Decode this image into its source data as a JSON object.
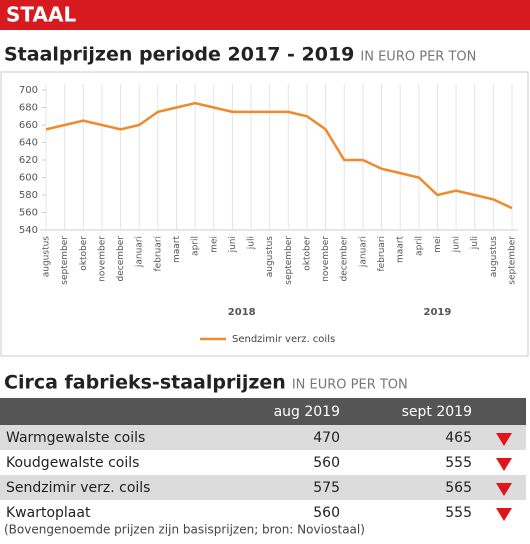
{
  "header": {
    "title": "STAAL"
  },
  "chart_data": {
    "type": "line",
    "title": "Staalprijzen periode 2017 - 2019",
    "subtitle": "IN EURO PER TON",
    "categories": [
      "augustus",
      "september",
      "oktober",
      "november",
      "december",
      "januari",
      "februari",
      "maart",
      "april",
      "mei",
      "juni",
      "juli",
      "augustus",
      "september",
      "oktober",
      "november",
      "december",
      "januari",
      "februari",
      "maart",
      "april",
      "mei",
      "juni",
      "juli",
      "augustus",
      "september"
    ],
    "group_labels": [
      "2018",
      "2019"
    ],
    "series": [
      {
        "name": "Sendzimir verz. coils",
        "color": "#f0892a",
        "values": [
          655,
          660,
          665,
          660,
          655,
          660,
          675,
          680,
          685,
          680,
          675,
          675,
          675,
          675,
          670,
          655,
          620,
          620,
          610,
          605,
          600,
          580,
          585,
          580,
          575,
          565
        ]
      }
    ],
    "ylim": [
      540,
      700
    ],
    "yticks": [
      540,
      560,
      580,
      600,
      620,
      640,
      660,
      680,
      700
    ],
    "grid": true,
    "legend": "bottom"
  },
  "table": {
    "title": "Circa fabrieks-staalprijzen",
    "subtitle": "IN EURO PER TON",
    "columns": [
      "aug 2019",
      "sept 2019"
    ],
    "rows": [
      [
        "Warmgewalste coils",
        470,
        465
      ],
      [
        "Koudgewalste coils",
        560,
        555
      ],
      [
        "Sendzimir verz. coils",
        575,
        565
      ],
      [
        "Kwartoplaat",
        560,
        555
      ]
    ]
  },
  "footnote": "(Bovengenoemde prijzen zijn basisprijzen; bron: Noviostaal)"
}
